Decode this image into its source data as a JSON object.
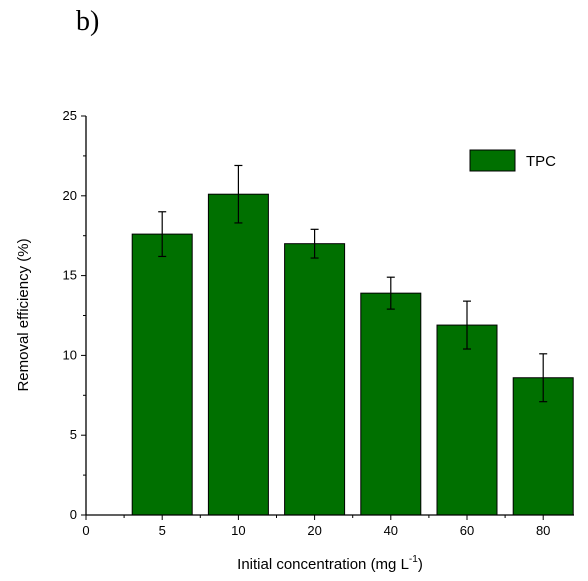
{
  "panel_label": "b)",
  "chart_data": {
    "type": "bar",
    "categories": [
      "5",
      "10",
      "20",
      "40",
      "60",
      "80"
    ],
    "series": [
      {
        "name": "TPC",
        "values": [
          17.6,
          20.1,
          17.0,
          13.9,
          11.9,
          8.6
        ],
        "errors": [
          1.4,
          1.8,
          0.9,
          1.0,
          1.5,
          1.5
        ],
        "color": "#007000"
      }
    ],
    "x_tick_labels": [
      "0",
      "5",
      "10",
      "20",
      "40",
      "60",
      "80"
    ],
    "y_ticks": [
      0,
      5,
      10,
      15,
      20,
      25
    ],
    "ylim": [
      0,
      25
    ],
    "ylabel": "Removal efficiency (%)",
    "xlabel": {
      "text": "Initial concentration (mg L",
      "superscript": "-1",
      "suffix": ")"
    },
    "grid": false,
    "legend_position": "top-right"
  }
}
